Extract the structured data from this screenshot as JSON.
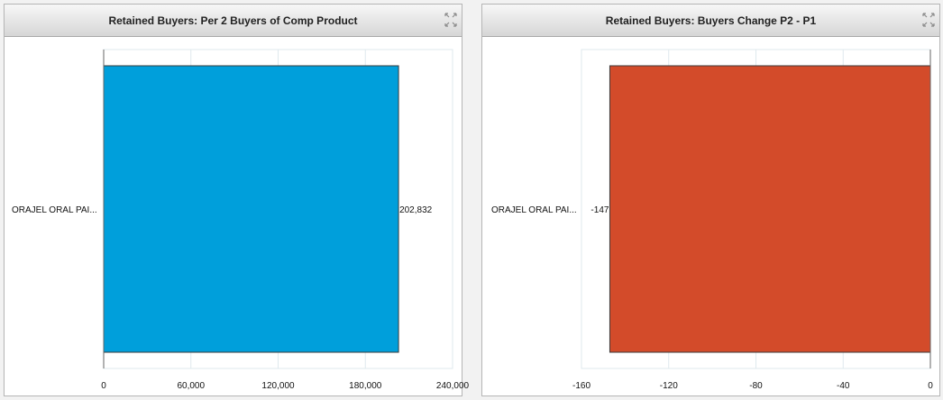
{
  "panels": [
    {
      "title": "Retained Buyers: Per 2 Buyers of Comp Product"
    },
    {
      "title": "Retained Buyers: Buyers Change P2 - P1"
    }
  ],
  "icons": {
    "expand": "expand-arrows-icon"
  },
  "chart_data": [
    {
      "type": "bar",
      "orientation": "horizontal",
      "title": "Retained Buyers: Per 2 Buyers of Comp Product",
      "categories": [
        "ORAJEL ORAL PAI..."
      ],
      "values": [
        202832
      ],
      "value_labels": [
        "202,832"
      ],
      "xlim": [
        0,
        240000
      ],
      "x_ticks": [
        "0",
        "60,000",
        "120,000",
        "180,000",
        "240,000"
      ],
      "x_tick_values": [
        0,
        60000,
        120000,
        180000,
        240000
      ],
      "color": "#009fdb",
      "grid": true
    },
    {
      "type": "bar",
      "orientation": "horizontal",
      "title": "Retained Buyers: Buyers Change P2 - P1",
      "categories": [
        "ORAJEL ORAL PAI..."
      ],
      "values": [
        -147
      ],
      "value_labels": [
        "-147"
      ],
      "xlim": [
        -160,
        0
      ],
      "x_ticks": [
        "-160",
        "-120",
        "-80",
        "-40",
        "0"
      ],
      "x_tick_values": [
        -160,
        -120,
        -80,
        -40,
        0
      ],
      "color": "#d34b2a",
      "grid": true
    }
  ]
}
